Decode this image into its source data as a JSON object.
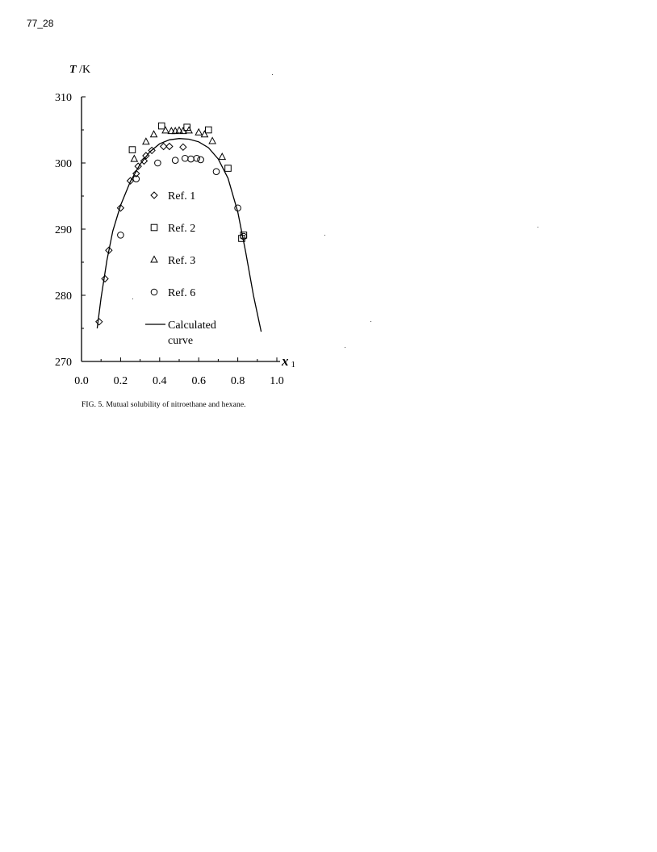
{
  "page_id": "77_28",
  "caption": "FIG. 5. Mutual solubility of nitroethane and hexane.",
  "chart_data": {
    "type": "scatter",
    "title": "",
    "xlabel": "x",
    "xlabel_subscript": "1",
    "ylabel": "T /K",
    "xlim": [
      0.0,
      1.0
    ],
    "ylim": [
      270,
      310
    ],
    "xticks": [
      "0.0",
      "0.2",
      "0.4",
      "0.6",
      "0.8",
      "1.0"
    ],
    "yticks": [
      "270",
      "280",
      "290",
      "300",
      "310"
    ],
    "legend_position": "inside-center",
    "series": [
      {
        "name": "Ref. 1",
        "marker": "diamond",
        "points": [
          [
            0.09,
            276.0
          ],
          [
            0.12,
            282.5
          ],
          [
            0.14,
            286.8
          ],
          [
            0.2,
            293.2
          ],
          [
            0.25,
            297.3
          ],
          [
            0.28,
            298.4
          ],
          [
            0.29,
            299.5
          ],
          [
            0.32,
            300.3
          ],
          [
            0.33,
            301.1
          ],
          [
            0.36,
            301.9
          ],
          [
            0.42,
            302.5
          ],
          [
            0.45,
            302.5
          ],
          [
            0.52,
            302.4
          ]
        ]
      },
      {
        "name": "Ref. 2",
        "marker": "square",
        "points": [
          [
            0.26,
            302.0
          ],
          [
            0.41,
            305.6
          ],
          [
            0.54,
            305.4
          ],
          [
            0.65,
            305.0
          ],
          [
            0.75,
            299.2
          ],
          [
            0.82,
            288.6
          ],
          [
            0.83,
            289.1
          ]
        ]
      },
      {
        "name": "Ref. 3",
        "marker": "triangle",
        "points": [
          [
            0.27,
            300.6
          ],
          [
            0.33,
            303.2
          ],
          [
            0.37,
            304.3
          ],
          [
            0.43,
            304.9
          ],
          [
            0.46,
            304.8
          ],
          [
            0.48,
            304.8
          ],
          [
            0.5,
            304.9
          ],
          [
            0.52,
            304.8
          ],
          [
            0.55,
            304.9
          ],
          [
            0.6,
            304.6
          ],
          [
            0.63,
            304.3
          ],
          [
            0.67,
            303.3
          ],
          [
            0.72,
            300.9
          ]
        ]
      },
      {
        "name": "Ref. 6",
        "marker": "circle",
        "points": [
          [
            0.2,
            289.1
          ],
          [
            0.28,
            297.6
          ],
          [
            0.39,
            300.0
          ],
          [
            0.48,
            300.4
          ],
          [
            0.53,
            300.7
          ],
          [
            0.56,
            300.6
          ],
          [
            0.59,
            300.7
          ],
          [
            0.61,
            300.5
          ],
          [
            0.69,
            298.7
          ],
          [
            0.8,
            293.2
          ],
          [
            0.83,
            288.9
          ]
        ]
      },
      {
        "name": "Calculated curve",
        "marker": "line",
        "points": [
          [
            0.08,
            275.0
          ],
          [
            0.1,
            279.6
          ],
          [
            0.13,
            285.3
          ],
          [
            0.16,
            289.7
          ],
          [
            0.2,
            293.6
          ],
          [
            0.25,
            297.2
          ],
          [
            0.3,
            299.8
          ],
          [
            0.35,
            301.7
          ],
          [
            0.4,
            302.9
          ],
          [
            0.45,
            303.5
          ],
          [
            0.5,
            303.7
          ],
          [
            0.55,
            303.6
          ],
          [
            0.6,
            303.2
          ],
          [
            0.65,
            302.3
          ],
          [
            0.7,
            300.6
          ],
          [
            0.75,
            297.7
          ],
          [
            0.8,
            292.6
          ],
          [
            0.84,
            286.6
          ],
          [
            0.88,
            280.0
          ],
          [
            0.92,
            274.5
          ]
        ]
      }
    ],
    "legend": [
      {
        "label": "Ref. 1",
        "marker": "diamond"
      },
      {
        "label": "Ref. 2",
        "marker": "square"
      },
      {
        "label": "Ref. 3",
        "marker": "triangle"
      },
      {
        "label": "Ref. 6",
        "marker": "circle"
      },
      {
        "label": "Calculated",
        "label2": "curve",
        "marker": "line"
      }
    ]
  }
}
